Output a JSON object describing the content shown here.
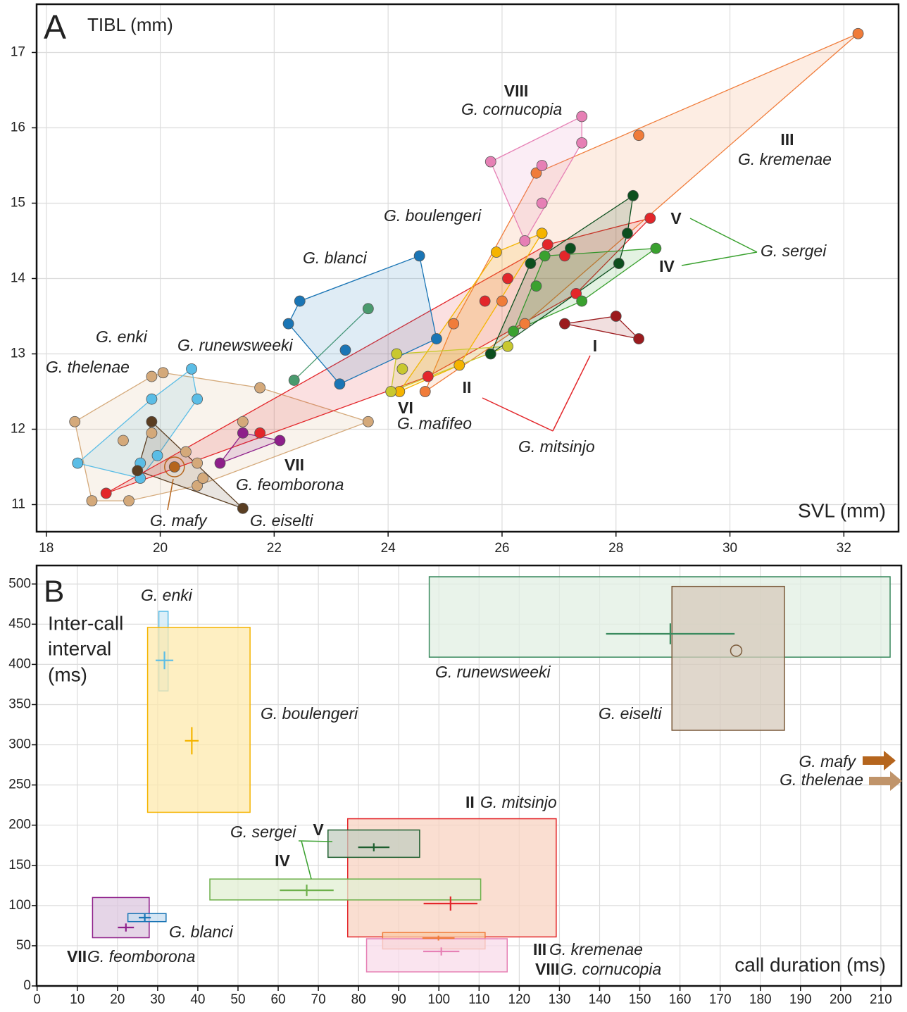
{
  "chart_data": [
    {
      "type": "scatter",
      "panel": "A",
      "y_label": "TIBL (mm)",
      "x_label": "SVL (mm)",
      "xlim": [
        17.83,
        32.96
      ],
      "ylim": [
        10.64,
        17.64
      ],
      "xticks": [
        18,
        20,
        22,
        24,
        26,
        28,
        30,
        32
      ],
      "yticks": [
        11,
        12,
        13,
        14,
        15,
        16,
        17
      ],
      "grid": true,
      "annotation": "G. sergei",
      "series": [
        {
          "name": "G. thelenae",
          "color": "#d4a97a",
          "x": [
            18.5,
            18.8,
            19.45,
            19.35,
            19.85,
            20.05,
            19.85,
            20.45,
            20.65,
            20.65,
            20.75,
            21.75,
            21.45,
            23.65
          ],
          "y": [
            12.1,
            11.05,
            11.05,
            11.85,
            12.7,
            12.75,
            11.95,
            11.7,
            11.55,
            11.25,
            11.35,
            12.55,
            12.1,
            12.1
          ]
        },
        {
          "name": "G. enki",
          "color": "#5bbde6",
          "x": [
            18.55,
            19.85,
            20.55,
            20.65,
            19.65,
            19.65,
            19.95
          ],
          "y": [
            11.55,
            12.4,
            12.8,
            12.4,
            11.55,
            11.35,
            11.65
          ]
        },
        {
          "name": "G. eiselti",
          "color": "#5a3e22",
          "x": [
            19.85,
            19.6,
            21.45
          ],
          "y": [
            12.1,
            11.45,
            10.95
          ]
        },
        {
          "name": "G. mafy",
          "color": "#b5651d",
          "highlight": true,
          "x": [
            20.25
          ],
          "y": [
            11.5
          ]
        },
        {
          "name": "G. mitsinjo",
          "clade": "II",
          "color": "#e3262a",
          "x": [
            19.05,
            21.75,
            24.7,
            25.7,
            26.1,
            26.8,
            27.1,
            28.6,
            27.3
          ],
          "y": [
            11.15,
            11.95,
            12.7,
            13.7,
            14.0,
            14.45,
            14.3,
            14.8,
            13.8
          ]
        },
        {
          "name": "I",
          "color": "#9b1b1e",
          "x": [
            27.1,
            28.0,
            28.4
          ],
          "y": [
            13.4,
            13.5,
            13.2
          ]
        },
        {
          "name": "G. kremenae",
          "clade": "III",
          "color": "#f07c3a",
          "x": [
            32.25,
            28.4,
            26.6,
            25.15,
            26.0,
            24.65,
            26.4
          ],
          "y": [
            17.25,
            15.9,
            15.4,
            13.4,
            13.7,
            12.5,
            13.4
          ]
        },
        {
          "name": "G. cornucopia",
          "clade": "VIII",
          "color": "#e680b5",
          "x": [
            27.4,
            27.4,
            25.8,
            26.7,
            26.7,
            26.4
          ],
          "y": [
            16.15,
            15.8,
            15.55,
            15.5,
            15.0,
            14.5
          ]
        },
        {
          "name": "G. boulengeri",
          "color": "#f5b400",
          "x": [
            26.7,
            25.9,
            25.25,
            24.2
          ],
          "y": [
            14.6,
            14.35,
            12.85,
            12.5
          ]
        },
        {
          "name": "G. mafifeo",
          "clade": "VI",
          "color": "#c8c82e",
          "x": [
            24.15,
            24.25,
            24.05,
            26.1
          ],
          "y": [
            13.0,
            12.8,
            12.5,
            13.1
          ]
        },
        {
          "name": "IV",
          "color": "#3aa12f",
          "x": [
            28.7,
            26.75,
            26.6,
            27.4,
            26.2
          ],
          "y": [
            14.4,
            14.3,
            13.9,
            13.7,
            13.3
          ]
        },
        {
          "name": "V",
          "color": "#0d4f1e",
          "x": [
            28.3,
            28.2,
            28.05,
            27.2,
            26.5,
            25.8
          ],
          "y": [
            15.1,
            14.6,
            14.2,
            14.4,
            14.2,
            13.0
          ]
        },
        {
          "name": "G. feomborona",
          "clade": "VII",
          "color": "#8e1f8a",
          "x": [
            21.05,
            21.45,
            22.1
          ],
          "y": [
            11.55,
            11.95,
            11.85
          ]
        },
        {
          "name": "G. runewsweeki",
          "color": "#4a9a6e",
          "x": [
            22.35,
            23.65
          ],
          "y": [
            12.65,
            13.6
          ]
        },
        {
          "name": "G. blanci",
          "color": "#1a75b5",
          "x": [
            24.55,
            22.45,
            22.25,
            23.25,
            23.15,
            24.85
          ],
          "y": [
            14.3,
            13.7,
            13.4,
            13.05,
            12.6,
            13.2
          ]
        }
      ]
    },
    {
      "type": "range-box",
      "panel": "B",
      "y_label": [
        "Inter-call",
        "interval",
        "(ms)"
      ],
      "x_label": "call duration (ms)",
      "xlim": [
        -0.12,
        215.1
      ],
      "ylim": [
        0,
        523
      ],
      "xticks": [
        0,
        10,
        20,
        30,
        40,
        50,
        60,
        70,
        80,
        90,
        100,
        110,
        120,
        130,
        140,
        150,
        160,
        170,
        180,
        190,
        200,
        210
      ],
      "yticks": [
        0,
        50,
        100,
        150,
        200,
        250,
        300,
        350,
        400,
        450,
        500
      ],
      "grid": true,
      "annotation": "G. sergei",
      "series": [
        {
          "name": "G. enki",
          "color": "#5bbde6",
          "fill": "#cfe9f5",
          "duration_range": [
            30.3,
            32.6
          ],
          "interval_range": [
            367,
            466
          ],
          "duration_mean": 31.7,
          "interval_mean": 405,
          "duration_sd": 2.2,
          "interval_sd": 11
        },
        {
          "name": "G. boulengeri",
          "color": "#f5b400",
          "fill": "#fde9ad",
          "duration_range": [
            27.5,
            53
          ],
          "interval_range": [
            216,
            446
          ],
          "duration_mean": 38.5,
          "interval_mean": 305,
          "duration_sd": 1.7,
          "interval_sd": 17
        },
        {
          "name": "G. runewsweeki",
          "color": "#3a8a5e",
          "fill": "#e2efe3",
          "duration_range": [
            97.6,
            212.3
          ],
          "interval_range": [
            409,
            509
          ],
          "duration_mean": 157.6,
          "interval_mean": 438,
          "duration_sd": 16,
          "interval_sd": 13
        },
        {
          "name": "G. eiselti",
          "color": "#7a5a3a",
          "fill": "#d6c9bb",
          "marker": "circle",
          "duration_range": [
            158,
            186
          ],
          "interval_range": [
            318,
            497
          ],
          "duration_mean": 174,
          "interval_mean": 417
        },
        {
          "name": "G. mitsinjo",
          "clade": "II",
          "color": "#e3262a",
          "fill": "#f8d3c1",
          "duration_range": [
            77.3,
            129.2
          ],
          "interval_range": [
            61,
            208
          ],
          "duration_mean": 102.9,
          "interval_mean": 102.5,
          "duration_sd": 6.7,
          "interval_sd": 8.8
        },
        {
          "name": "V",
          "color": "#1d5e2e",
          "fill": "#c3cec0",
          "duration_range": [
            72.4,
            95.2
          ],
          "interval_range": [
            160,
            194
          ],
          "duration_mean": 83.8,
          "interval_mean": 172.5,
          "duration_sd": 3.9,
          "interval_sd": 5
        },
        {
          "name": "IV",
          "color": "#6cb04a",
          "fill": "#e2efd3",
          "duration_range": [
            43,
            110.4
          ],
          "interval_range": [
            107,
            133
          ],
          "duration_mean": 67.1,
          "interval_mean": 119,
          "duration_sd": 6.7,
          "interval_sd": 7
        },
        {
          "name": "G. kremenae",
          "clade": "III",
          "color": "#f07c3a",
          "fill": "#f9c9a4",
          "duration_range": [
            86,
            111.5
          ],
          "interval_range": [
            46,
            66.5
          ],
          "duration_mean": 99.9,
          "interval_mean": 59.5,
          "duration_sd": 4,
          "interval_sd": 3
        },
        {
          "name": "G. cornucopia",
          "clade": "VIII",
          "color": "#e680b5",
          "fill": "#f8dbe9",
          "duration_range": [
            82,
            117
          ],
          "interval_range": [
            17.5,
            58.7
          ],
          "duration_mean": 100.6,
          "interval_mean": 42.9,
          "duration_sd": 4.5,
          "interval_sd": 5
        },
        {
          "name": "G. feomborona",
          "clade": "VII",
          "color": "#8e1f8a",
          "fill": "#dcc7df",
          "duration_range": [
            13.8,
            27.9
          ],
          "interval_range": [
            60,
            110
          ],
          "duration_mean": 22.1,
          "interval_mean": 72.7,
          "duration_sd": 2,
          "interval_sd": 5
        },
        {
          "name": "G. blanci",
          "color": "#1a75b5",
          "fill": "#c7def0",
          "duration_range": [
            22.6,
            32.1
          ],
          "interval_range": [
            80,
            90
          ],
          "duration_mean": 26.8,
          "interval_mean": 85,
          "duration_sd": 1.5,
          "interval_sd": 5
        }
      ],
      "offscale": [
        {
          "name": "G. mafy",
          "color": "#b5651d"
        },
        {
          "name": "G. thelenae",
          "color": "#c0946a"
        }
      ]
    }
  ]
}
